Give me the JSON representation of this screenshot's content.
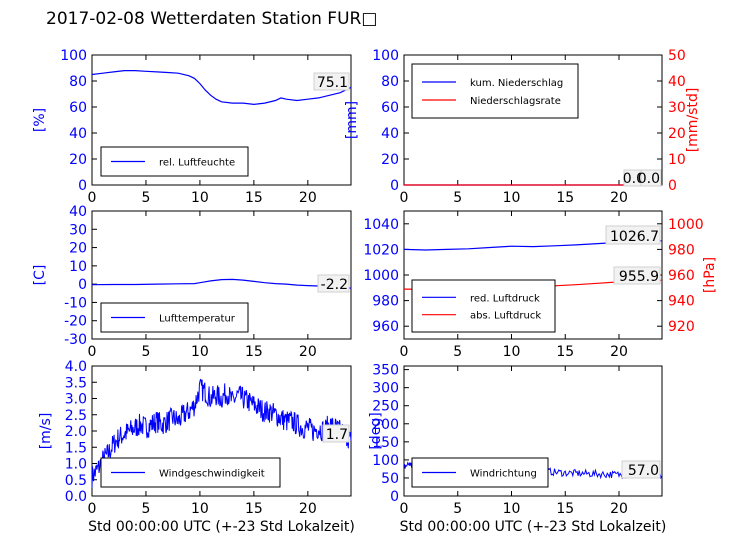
{
  "title": "2017-02-08 Wetterdaten Station FUR□",
  "colors": {
    "primary": "#0000ff",
    "secondary": "#ff0000",
    "frame": "#000000"
  },
  "chart_data": [
    {
      "id": "humidity",
      "type": "line",
      "ylabel": "[%]",
      "xlim": [
        0,
        24
      ],
      "ylim": [
        0,
        100
      ],
      "xticks": [
        0,
        5,
        10,
        15,
        20
      ],
      "yticks": [
        0,
        20,
        40,
        60,
        80,
        100
      ],
      "legend": {
        "position": "lower-left",
        "entries": [
          "rel. Luftfeuchte"
        ]
      },
      "annotation": "75.1",
      "series": [
        {
          "name": "rel. Luftfeuchte",
          "color": "#0000ff",
          "x": [
            0,
            1,
            2,
            3,
            4,
            5,
            6,
            7,
            8,
            9,
            9.5,
            10,
            10.5,
            11,
            11.5,
            12,
            13,
            14,
            15,
            16,
            17,
            17.5,
            18,
            19,
            20,
            21,
            22,
            23,
            24
          ],
          "y": [
            85,
            86,
            87,
            88,
            88,
            87.5,
            87,
            86.5,
            86,
            84,
            82,
            78,
            73,
            69,
            66,
            64,
            63,
            63,
            62,
            63,
            65,
            67,
            66,
            65,
            66,
            67,
            69,
            71,
            75.1
          ]
        }
      ]
    },
    {
      "id": "precipitation",
      "type": "line",
      "ylabel": "[mm]",
      "y2label": "[mm/std]",
      "xlim": [
        0,
        24
      ],
      "ylim": [
        0,
        100
      ],
      "y2lim": [
        0,
        50
      ],
      "xticks": [
        0,
        5,
        10,
        15,
        20
      ],
      "yticks": [
        0,
        20,
        40,
        60,
        80,
        100
      ],
      "y2ticks": [
        0,
        10,
        20,
        30,
        40,
        50
      ],
      "legend": {
        "position": "upper-left",
        "entries": [
          "kum. Niederschlag",
          "Niederschlagsrate"
        ]
      },
      "annotations": [
        "0.0",
        "0.0"
      ],
      "series": [
        {
          "name": "kum. Niederschlag",
          "color": "#0000ff",
          "axis": "left",
          "x": [
            0,
            24
          ],
          "y": [
            0,
            0
          ]
        },
        {
          "name": "Niederschlagsrate",
          "color": "#ff0000",
          "axis": "right",
          "x": [
            0,
            24
          ],
          "y": [
            0,
            0
          ]
        }
      ]
    },
    {
      "id": "temperature",
      "type": "line",
      "ylabel": "[C]",
      "xlim": [
        0,
        24
      ],
      "ylim": [
        -30,
        40
      ],
      "xticks": [
        0,
        5,
        10,
        15,
        20
      ],
      "yticks": [
        -30,
        -20,
        -10,
        0,
        10,
        20,
        30,
        40
      ],
      "legend": {
        "position": "lower-left",
        "entries": [
          "Lufttemperatur"
        ]
      },
      "annotation": "-2.2",
      "series": [
        {
          "name": "Lufttemperatur",
          "color": "#0000ff",
          "x": [
            0,
            2,
            4,
            6,
            8,
            9.5,
            10,
            11,
            12,
            13,
            14,
            15,
            16,
            17,
            18,
            19,
            20,
            21,
            22,
            23,
            24
          ],
          "y": [
            -0.3,
            -0.2,
            -0.2,
            0,
            0.2,
            0.3,
            0.8,
            1.8,
            2.5,
            2.6,
            2.2,
            1.5,
            0.8,
            0.3,
            0,
            -0.5,
            -0.8,
            -1,
            -1.3,
            -1.5,
            -2.2
          ]
        }
      ]
    },
    {
      "id": "pressure",
      "type": "line",
      "y2label": "[hPa]",
      "xlim": [
        0,
        24
      ],
      "ylim": [
        950,
        1050
      ],
      "y2lim": [
        910,
        1010
      ],
      "xticks": [
        0,
        5,
        10,
        15,
        20
      ],
      "yticks": [
        960,
        980,
        1000,
        1020,
        1040
      ],
      "y2ticks": [
        920,
        940,
        960,
        980,
        1000
      ],
      "legend": {
        "position": "lower-left",
        "entries": [
          "red. Luftdruck",
          "abs. Luftdruck"
        ]
      },
      "annotations": [
        "1026.7",
        "955.9"
      ],
      "series": [
        {
          "name": "red. Luftdruck",
          "color": "#0000ff",
          "axis": "left",
          "x": [
            0,
            2,
            4,
            6,
            8,
            10,
            12,
            14,
            16,
            18,
            20,
            22,
            24
          ],
          "y": [
            1020,
            1019.5,
            1020,
            1020.5,
            1021.5,
            1022.5,
            1022.2,
            1022.8,
            1023.5,
            1024.5,
            1025.5,
            1026,
            1026.7
          ]
        },
        {
          "name": "abs. Luftdruck",
          "color": "#ff0000",
          "axis": "right",
          "x": [
            0,
            2,
            4,
            6,
            8,
            10,
            12,
            14,
            16,
            18,
            20,
            22,
            24
          ],
          "y": [
            949,
            948.8,
            949,
            949.5,
            950.3,
            951.2,
            951,
            951.6,
            952.4,
            953.5,
            954.6,
            955.3,
            955.9
          ]
        }
      ]
    },
    {
      "id": "wind-speed",
      "type": "line",
      "ylabel": "[m/s]",
      "xlabel": "Std 00:00:00 UTC (+-23 Std Lokalzeit)",
      "xlim": [
        0,
        24
      ],
      "ylim": [
        0,
        4
      ],
      "xticks": [
        0,
        5,
        10,
        15,
        20
      ],
      "yticks": [
        0.0,
        0.5,
        1.0,
        1.5,
        2.0,
        2.5,
        3.0,
        3.5,
        4.0
      ],
      "legend": {
        "position": "lower-left",
        "entries": [
          "Windgeschwindigkeit"
        ]
      },
      "annotation": "1.7",
      "series": [
        {
          "name": "Windgeschwindigkeit",
          "color": "#0000ff",
          "x": [
            0,
            0.5,
            1,
            1.5,
            2,
            2.5,
            3,
            3.5,
            4,
            4.5,
            5,
            5.5,
            6,
            6.5,
            7,
            7.5,
            8,
            8.5,
            9,
            9.5,
            10,
            10.5,
            11,
            11.5,
            12,
            12.5,
            13,
            13.5,
            14,
            14.5,
            15,
            15.5,
            16,
            16.5,
            17,
            17.5,
            18,
            18.5,
            19,
            19.5,
            20,
            20.5,
            21,
            21.5,
            22,
            22.5,
            23,
            23.5,
            24
          ],
          "y": [
            0.6,
            0.8,
            1.1,
            1.3,
            1.6,
            1.8,
            1.9,
            2.0,
            2.1,
            2.2,
            2.1,
            2.2,
            2.3,
            2.2,
            2.3,
            2.4,
            2.3,
            2.5,
            2.6,
            2.8,
            3.3,
            3.2,
            3.0,
            3.1,
            3.0,
            3.2,
            2.9,
            3.1,
            3.0,
            2.9,
            2.8,
            2.7,
            2.6,
            2.6,
            2.5,
            2.4,
            2.3,
            2.3,
            2.2,
            2.1,
            2.1,
            2.0,
            2.1,
            2.0,
            2.2,
            2.1,
            2.0,
            1.9,
            1.7
          ]
        }
      ]
    },
    {
      "id": "wind-direction",
      "type": "line",
      "ylabel": "[deg]",
      "xlabel": "Std 00:00:00 UTC (+-23 Std Lokalzeit)",
      "xlim": [
        0,
        24
      ],
      "ylim": [
        0,
        360
      ],
      "xticks": [
        0,
        5,
        10,
        15,
        20
      ],
      "yticks": [
        0,
        50,
        100,
        150,
        200,
        250,
        300,
        350
      ],
      "legend": {
        "position": "lower-left",
        "entries": [
          "Windrichtung"
        ]
      },
      "annotation": "57.0",
      "series": [
        {
          "name": "Windrichtung",
          "color": "#0000ff",
          "x": [
            0,
            0.5,
            1,
            1.5,
            2,
            3,
            4,
            5,
            6,
            7,
            8,
            9,
            10,
            11,
            12,
            13,
            14,
            15,
            16,
            17,
            18,
            19,
            20,
            21,
            22,
            23,
            24
          ],
          "y": [
            80,
            90,
            75,
            70,
            65,
            68,
            70,
            72,
            70,
            68,
            74,
            78,
            80,
            76,
            74,
            70,
            66,
            64,
            63,
            62,
            61,
            60,
            59,
            58,
            58,
            57,
            57
          ]
        }
      ]
    }
  ]
}
